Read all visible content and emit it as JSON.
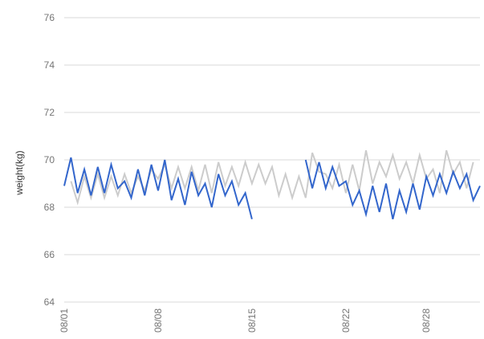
{
  "colors": {
    "series_primary": "#3366cc",
    "series_secondary": "#cccccc",
    "gridline": "#d9d9d9",
    "tick_text": "#757575",
    "axis_title_text": "#333333"
  },
  "chart_data": {
    "type": "line",
    "title": "",
    "xlabel": "",
    "ylabel": "weight(kg)",
    "ylim": [
      64,
      76
    ],
    "yticks": [
      "64",
      "66",
      "68",
      "70",
      "72",
      "74",
      "76"
    ],
    "xlim": [
      "2000-08-01",
      "2000-09-01"
    ],
    "xtick_labels": [
      "08/01",
      "08/08",
      "08/15",
      "08/22",
      "08/28"
    ],
    "xtick_dates": [
      "2000-08-01",
      "2000-08-08",
      "2000-08-15",
      "2000-08-22",
      "2000-08-28"
    ],
    "grid": true,
    "legend": "none",
    "series": [
      {
        "color": "#cccccc",
        "x": [
          "2000-08-01",
          "2000-08-01 12:00",
          "2000-08-02",
          "2000-08-02 12:00",
          "2000-08-03",
          "2000-08-03 12:00",
          "2000-08-04",
          "2000-08-04 12:00",
          "2000-08-05",
          "2000-08-05 12:00",
          "2000-08-06",
          "2000-08-06 12:00",
          "2000-08-07",
          "2000-08-07 12:00",
          "2000-08-08",
          "2000-08-08 12:00",
          "2000-08-09",
          "2000-08-09 12:00",
          "2000-08-10",
          "2000-08-10 12:00",
          "2000-08-11",
          "2000-08-11 12:00",
          "2000-08-12",
          "2000-08-12 12:00",
          "2000-08-13",
          "2000-08-13 12:00",
          "2000-08-14",
          "2000-08-14 12:00",
          "2000-08-15",
          "2000-08-15 12:00",
          "2000-08-16",
          "2000-08-16 12:00",
          "2000-08-17",
          "2000-08-17 12:00",
          "2000-08-18",
          "2000-08-18 12:00",
          "2000-08-19",
          "2000-08-19 12:00",
          "2000-08-20",
          "2000-08-20 12:00",
          "2000-08-21",
          "2000-08-21 12:00",
          "2000-08-22",
          "2000-08-22 12:00",
          "2000-08-23",
          "2000-08-23 12:00",
          "2000-08-24",
          "2000-08-24 12:00",
          "2000-08-25",
          "2000-08-25 12:00",
          "2000-08-26",
          "2000-08-26 12:00",
          "2000-08-27",
          "2000-08-27 12:00",
          "2000-08-28",
          "2000-08-28 12:00",
          "2000-08-29",
          "2000-08-29 12:00",
          "2000-08-30",
          "2000-08-30 12:00",
          "2000-08-31",
          "2000-08-31 12:00",
          "2000-09-01"
        ],
        "values": [
          null,
          69.1,
          68.2,
          69.3,
          68.4,
          69.4,
          68.4,
          69.3,
          68.5,
          69.4,
          68.6,
          69.3,
          68.7,
          69.6,
          69.2,
          69.8,
          68.8,
          69.7,
          68.8,
          69.7,
          68.7,
          69.8,
          68.6,
          69.9,
          68.9,
          69.7,
          68.9,
          69.9,
          69.0,
          69.8,
          69.0,
          69.7,
          68.5,
          69.4,
          68.4,
          69.3,
          68.4,
          70.3,
          69.5,
          69.4,
          68.8,
          69.8,
          68.6,
          69.8,
          68.7,
          70.4,
          69.0,
          69.9,
          69.3,
          70.2,
          69.2,
          69.9,
          69.0,
          70.2,
          69.2,
          69.6,
          68.6,
          70.4,
          69.4,
          69.9,
          68.8,
          69.9,
          null
        ]
      },
      {
        "color": "#3366cc",
        "x": [
          "2000-08-01",
          "2000-08-01 12:00",
          "2000-08-02",
          "2000-08-02 12:00",
          "2000-08-03",
          "2000-08-03 12:00",
          "2000-08-04",
          "2000-08-04 12:00",
          "2000-08-05",
          "2000-08-05 12:00",
          "2000-08-06",
          "2000-08-06 12:00",
          "2000-08-07",
          "2000-08-07 12:00",
          "2000-08-08",
          "2000-08-08 12:00",
          "2000-08-09",
          "2000-08-09 12:00",
          "2000-08-10",
          "2000-08-10 12:00",
          "2000-08-11",
          "2000-08-11 12:00",
          "2000-08-12",
          "2000-08-12 12:00",
          "2000-08-13",
          "2000-08-13 12:00",
          "2000-08-14",
          "2000-08-14 12:00",
          "2000-08-15",
          "2000-08-15 12:00",
          "2000-08-16",
          "2000-08-16 12:00",
          "2000-08-17",
          "2000-08-17 12:00",
          "2000-08-18",
          "2000-08-18 12:00",
          "2000-08-19",
          "2000-08-19 12:00",
          "2000-08-20",
          "2000-08-20 12:00",
          "2000-08-21",
          "2000-08-21 12:00",
          "2000-08-22",
          "2000-08-22 12:00",
          "2000-08-23",
          "2000-08-23 12:00",
          "2000-08-24",
          "2000-08-24 12:00",
          "2000-08-25",
          "2000-08-25 12:00",
          "2000-08-26",
          "2000-08-26 12:00",
          "2000-08-27",
          "2000-08-27 12:00",
          "2000-08-28",
          "2000-08-28 12:00",
          "2000-08-29",
          "2000-08-29 12:00",
          "2000-08-30",
          "2000-08-30 12:00",
          "2000-08-31",
          "2000-08-31 12:00",
          "2000-09-01"
        ],
        "values": [
          68.9,
          70.1,
          68.6,
          69.6,
          68.5,
          69.7,
          68.6,
          69.8,
          68.8,
          69.1,
          68.4,
          69.6,
          68.5,
          69.8,
          68.7,
          70.0,
          68.3,
          69.2,
          68.1,
          69.5,
          68.5,
          69.0,
          68.0,
          69.4,
          68.5,
          69.1,
          68.1,
          68.6,
          67.5,
          null,
          null,
          null,
          null,
          null,
          null,
          null,
          70.0,
          68.8,
          69.9,
          68.8,
          69.7,
          68.9,
          69.1,
          68.1,
          68.7,
          67.7,
          68.9,
          67.8,
          69.0,
          67.5,
          68.7,
          67.8,
          69.0,
          67.9,
          69.3,
          68.5,
          69.4,
          68.6,
          69.5,
          68.8,
          69.4,
          68.3,
          68.9
        ]
      }
    ]
  }
}
